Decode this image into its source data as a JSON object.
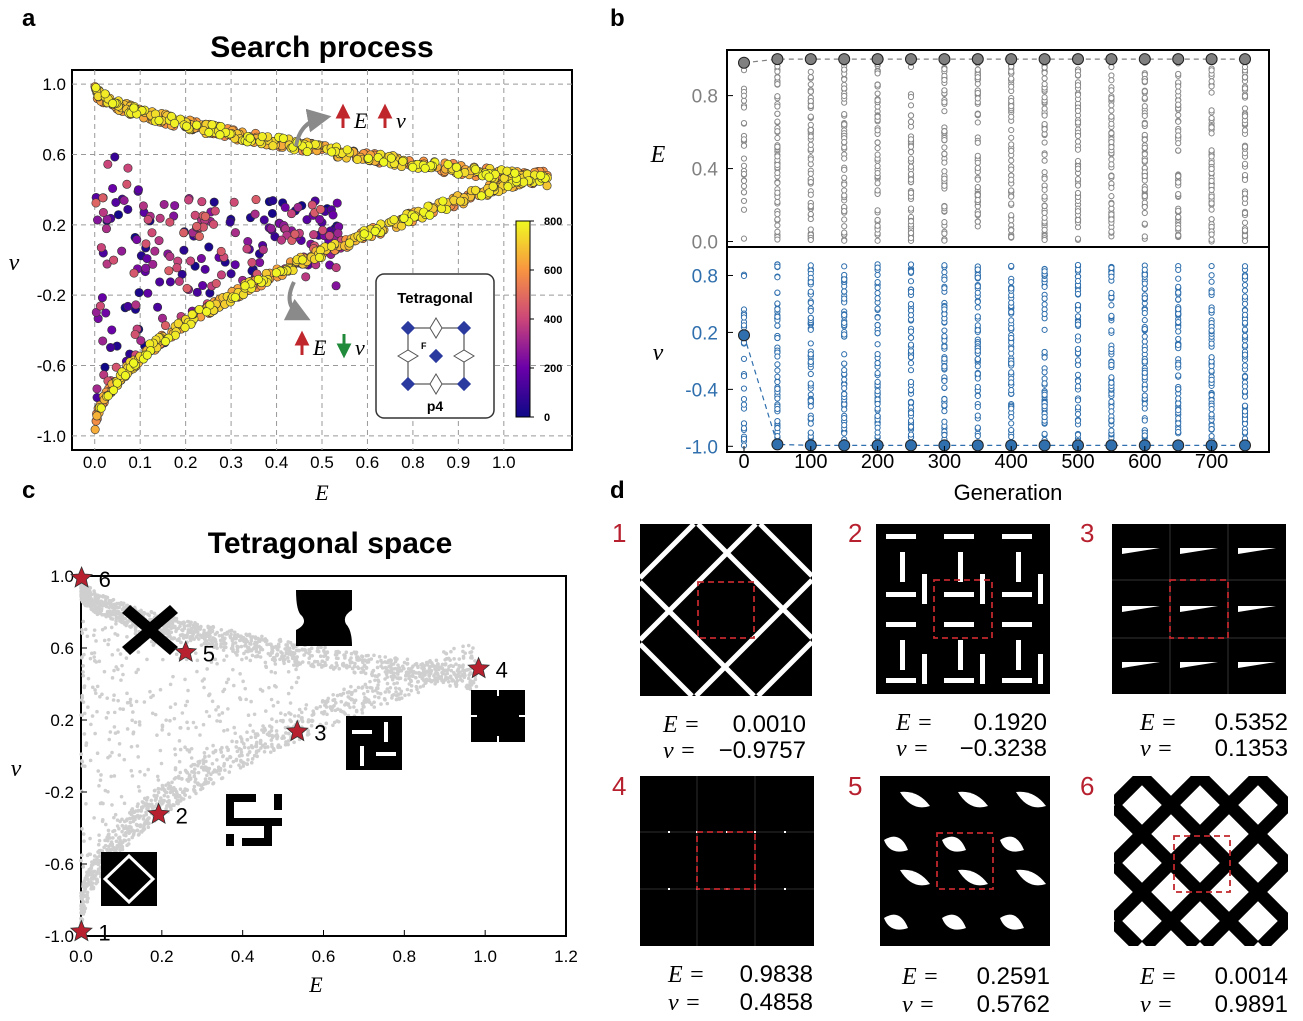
{
  "panels": {
    "a": {
      "letter": "a",
      "chart_data": {
        "type": "scatter",
        "title": "Search process",
        "xlabel": "E",
        "ylabel": "ν",
        "xlim": [
          -0.05,
          1.05
        ],
        "ylim": [
          -1.08,
          1.08
        ],
        "x_ticks": [
          "0.0",
          "0.1",
          "0.2",
          "0.3",
          "0.4",
          "0.5",
          "0.6",
          "0.8",
          "0.9",
          "1.0"
        ],
        "y_ticks": [
          "1.0",
          "0.6",
          "0.2",
          "-0.2",
          "-0.6",
          "-1.0"
        ],
        "grid": true,
        "colorbar": {
          "min": 0,
          "max": 800,
          "ticks": [
            "800",
            "600",
            "400",
            "200",
            "0"
          ]
        },
        "annotations": {
          "upper_arrow": "E ↑ ν ↑",
          "lower_arrow": "E ↑ ν ↓"
        },
        "inset": {
          "title": "Tetragonal",
          "group": "p4"
        }
      }
    },
    "b": {
      "letter": "b",
      "chart_data": {
        "type": "scatter",
        "xlabel": "Generation",
        "x_ticks": [
          "0",
          "100",
          "200",
          "300",
          "400",
          "500",
          "600",
          "700"
        ],
        "generations": [
          0,
          50,
          100,
          150,
          200,
          250,
          300,
          350,
          400,
          450,
          500,
          550,
          600,
          650,
          700,
          750
        ],
        "series": [
          {
            "name": "E",
            "y_ticks": [
              "0.8",
              "0.4",
              "0.0"
            ],
            "ylim": [
              -0.03,
              1.05
            ],
            "best": [
              0.98,
              1.0,
              1.0,
              1.0,
              1.0,
              1.0,
              1.0,
              1.0,
              1.0,
              1.0,
              1.0,
              1.0,
              1.0,
              1.0,
              1.0,
              1.0
            ],
            "color": "#808080"
          },
          {
            "name": "ν",
            "y_ticks": [
              "0.8",
              "0.2",
              "-0.4",
              "-1.0"
            ],
            "ylim": [
              -1.06,
              1.1
            ],
            "best": [
              0.17,
              -0.98,
              -0.99,
              -0.99,
              -0.99,
              -0.99,
              -0.99,
              -0.99,
              -0.99,
              -0.99,
              -0.99,
              -0.99,
              -0.99,
              -0.99,
              -0.99,
              -0.99
            ],
            "color": "#2f6fad"
          }
        ]
      }
    },
    "c": {
      "letter": "c",
      "chart_data": {
        "type": "scatter",
        "title": "Tetragonal space",
        "xlabel": "E",
        "ylabel": "ν",
        "xlim": [
          0,
          1.2
        ],
        "ylim": [
          -1.0,
          1.0
        ],
        "x_ticks": [
          "0.0",
          "0.2",
          "0.4",
          "0.6",
          "0.8",
          "1.0",
          "1.2"
        ],
        "y_ticks": [
          "1.0",
          "0.6",
          "0.2",
          "-0.2",
          "-0.6",
          "-1.0"
        ],
        "grid": false,
        "highlighted": [
          {
            "label": "1",
            "x": 0.001,
            "y": -0.9757
          },
          {
            "label": "2",
            "x": 0.192,
            "y": -0.3238
          },
          {
            "label": "3",
            "x": 0.5352,
            "y": 0.1353
          },
          {
            "label": "4",
            "x": 0.9838,
            "y": 0.4858
          },
          {
            "label": "5",
            "x": 0.2591,
            "y": 0.5762
          },
          {
            "label": "6",
            "x": 0.0014,
            "y": 0.9891
          }
        ]
      }
    },
    "d": {
      "letter": "d",
      "structures": [
        {
          "num": "1",
          "E_label": "E =",
          "E": "0.0010",
          "v_label": "ν =",
          "v": "−0.9757"
        },
        {
          "num": "2",
          "E_label": "E =",
          "E": "0.1920",
          "v_label": "ν =",
          "v": "−0.3238"
        },
        {
          "num": "3",
          "E_label": "E =",
          "E": "0.5352",
          "v_label": "ν =",
          "v": "0.1353"
        },
        {
          "num": "4",
          "E_label": "E =",
          "E": "0.9838",
          "v_label": "ν =",
          "v": "0.4858"
        },
        {
          "num": "5",
          "E_label": "E =",
          "E": "0.2591",
          "v_label": "ν =",
          "v": "0.5762"
        },
        {
          "num": "6",
          "E_label": "E =",
          "E": "0.0014",
          "v_label": "ν =",
          "v": "0.9891"
        }
      ]
    }
  }
}
